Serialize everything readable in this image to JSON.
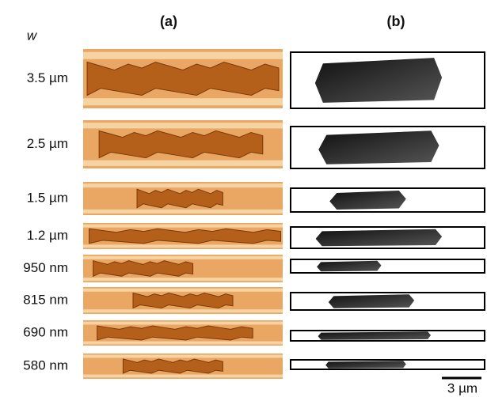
{
  "header": {
    "panel_a": "(a)",
    "panel_b": "(b)",
    "width_label": "w"
  },
  "rows": [
    "3.5 µm",
    "2.5 µm",
    "1.5 µm",
    "1.2 µm",
    "950 nm",
    "815 nm",
    "690 nm",
    "580 nm"
  ],
  "scale_bar": "3 µm"
}
